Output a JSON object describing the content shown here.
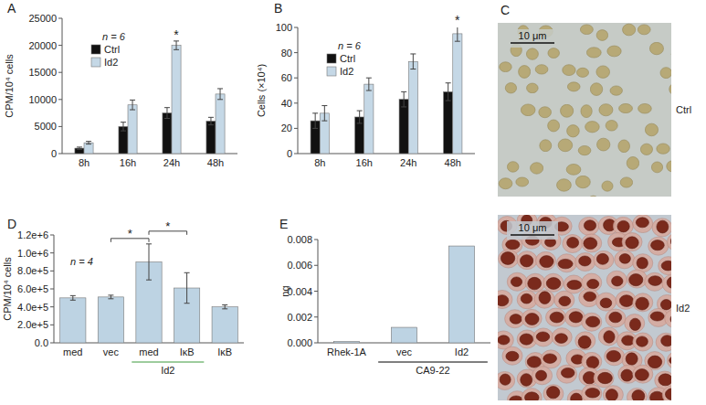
{
  "chart_data": [
    {
      "type": "bar",
      "title": "A",
      "subtitle": "n = 6",
      "ylabel": "CPM/10⁴ cells",
      "categories": [
        "8h",
        "16h",
        "24h",
        "48h"
      ],
      "series": [
        {
          "name": "Ctrl",
          "color": "#111111",
          "values": [
            1000,
            5000,
            7500,
            6000
          ],
          "errors": [
            200,
            800,
            1000,
            700
          ]
        },
        {
          "name": "Id2",
          "color": "#c5d8e6",
          "values": [
            2000,
            9000,
            20000,
            11000
          ],
          "errors": [
            250,
            900,
            800,
            1000
          ]
        }
      ],
      "ylim": [
        0,
        25000
      ],
      "yticks": [
        0,
        5000,
        10000,
        15000,
        20000,
        25000
      ],
      "legend": "upper left",
      "annotations": [
        {
          "text": "*",
          "category": 2,
          "series": 1
        }
      ]
    },
    {
      "type": "bar",
      "title": "B",
      "subtitle": "n = 6",
      "ylabel": "Cells (×10⁴)",
      "categories": [
        "8h",
        "16h",
        "24h",
        "48h"
      ],
      "series": [
        {
          "name": "Ctrl",
          "color": "#111111",
          "values": [
            26,
            29,
            43,
            49
          ],
          "errors": [
            6,
            5,
            6,
            7
          ]
        },
        {
          "name": "Id2",
          "color": "#c5d8e6",
          "values": [
            32,
            55,
            73,
            95
          ],
          "errors": [
            6,
            5,
            6,
            6
          ]
        }
      ],
      "ylim": [
        0,
        100
      ],
      "yticks": [
        0,
        20,
        40,
        60,
        80,
        100
      ],
      "legend": "upper left",
      "annotations": [
        {
          "text": "*",
          "category": 3,
          "series": 1
        }
      ]
    },
    {
      "type": "bar",
      "title": "D",
      "subtitle": "n = 4",
      "ylabel": "CPM/10⁴ cells",
      "categories": [
        "med",
        "vec",
        "med",
        "IκB",
        "IκB"
      ],
      "values": [
        500000,
        510000,
        900000,
        610000,
        400000
      ],
      "errors": [
        25000,
        20000,
        200000,
        170000,
        22000
      ],
      "color": "#bdd3e3",
      "ylim": [
        0,
        1200000
      ],
      "yticks": [
        {
          "value": 0,
          "label": "0.0"
        },
        {
          "value": 200000,
          "label": "2.0e+5"
        },
        {
          "value": 400000,
          "label": "4.0e+5"
        },
        {
          "value": 600000,
          "label": "6.0e+5"
        },
        {
          "value": 800000,
          "label": "8.0e+5"
        },
        {
          "value": 1000000,
          "label": "1.0e+6"
        },
        {
          "value": 1200000,
          "label": "1.2e+6"
        }
      ],
      "group_labels": [
        {
          "text": "Id2",
          "from": 2,
          "to": 3,
          "color": "#3c9a3c"
        }
      ],
      "brackets": [
        {
          "from": 1,
          "to": 2,
          "text": "*"
        },
        {
          "from": 2,
          "to": 3,
          "text": "*"
        }
      ]
    },
    {
      "type": "bar",
      "title": "E",
      "ylabel": "ng",
      "categories": [
        "Rhek-1A",
        "vec",
        "Id2"
      ],
      "values": [
        0.0001,
        0.0012,
        0.0075
      ],
      "color": "#bdd3e3",
      "ylim": [
        0,
        0.008
      ],
      "yticks": [
        {
          "value": 0,
          "label": "0.000"
        },
        0.002,
        0.004,
        0.006,
        0.008
      ],
      "group_labels": [
        {
          "text": "CA9-22",
          "from": 1,
          "to": 2,
          "color": "#000000"
        }
      ]
    }
  ],
  "images": {
    "title": "C",
    "panels": [
      {
        "label": "Ctrl",
        "scale_bar": "10 μm"
      },
      {
        "label": "Id2",
        "scale_bar": "10 μm"
      }
    ]
  }
}
